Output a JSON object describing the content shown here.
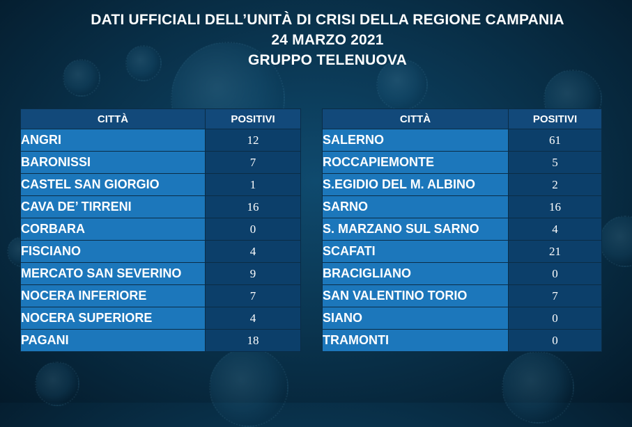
{
  "header": {
    "line1": "DATI UFFICIALI DELL’UNITÀ DI CRISI DELLA REGIONE CAMPANIA",
    "line2": "24 MARZO 2021",
    "line3": "GRUPPO TELENUOVA"
  },
  "left_table": {
    "columns": [
      "CITTÀ",
      "POSITIVI"
    ],
    "rows": [
      {
        "city": "ANGRI",
        "positivi": "12"
      },
      {
        "city": "BARONISSI",
        "positivi": "7"
      },
      {
        "city": "CASTEL SAN GIORGIO",
        "positivi": "1"
      },
      {
        "city": "CAVA DE’ TIRRENI",
        "positivi": "16"
      },
      {
        "city": "CORBARA",
        "positivi": "0"
      },
      {
        "city": "FISCIANO",
        "positivi": "4"
      },
      {
        "city": "MERCATO SAN SEVERINO",
        "positivi": "9"
      },
      {
        "city": "NOCERA INFERIORE",
        "positivi": "7"
      },
      {
        "city": "NOCERA SUPERIORE",
        "positivi": "4"
      },
      {
        "city": "PAGANI",
        "positivi": "18"
      }
    ]
  },
  "right_table": {
    "columns": [
      "CITTÀ",
      "POSITIVI"
    ],
    "rows": [
      {
        "city": "SALERNO",
        "positivi": "61"
      },
      {
        "city": "ROCCAPIEMONTE",
        "positivi": "5"
      },
      {
        "city": "S.EGIDIO DEL M. ALBINO",
        "positivi": "2"
      },
      {
        "city": "SARNO",
        "positivi": "16"
      },
      {
        "city": "S. MARZANO SUL SARNO",
        "positivi": "4"
      },
      {
        "city": "SCAFATI",
        "positivi": "21"
      },
      {
        "city": "BRACIGLIANO",
        "positivi": "0"
      },
      {
        "city": "SAN VALENTINO TORIO",
        "positivi": "7"
      },
      {
        "city": "SIANO",
        "positivi": "0"
      },
      {
        "city": "TRAMONTI",
        "positivi": "0"
      }
    ]
  }
}
